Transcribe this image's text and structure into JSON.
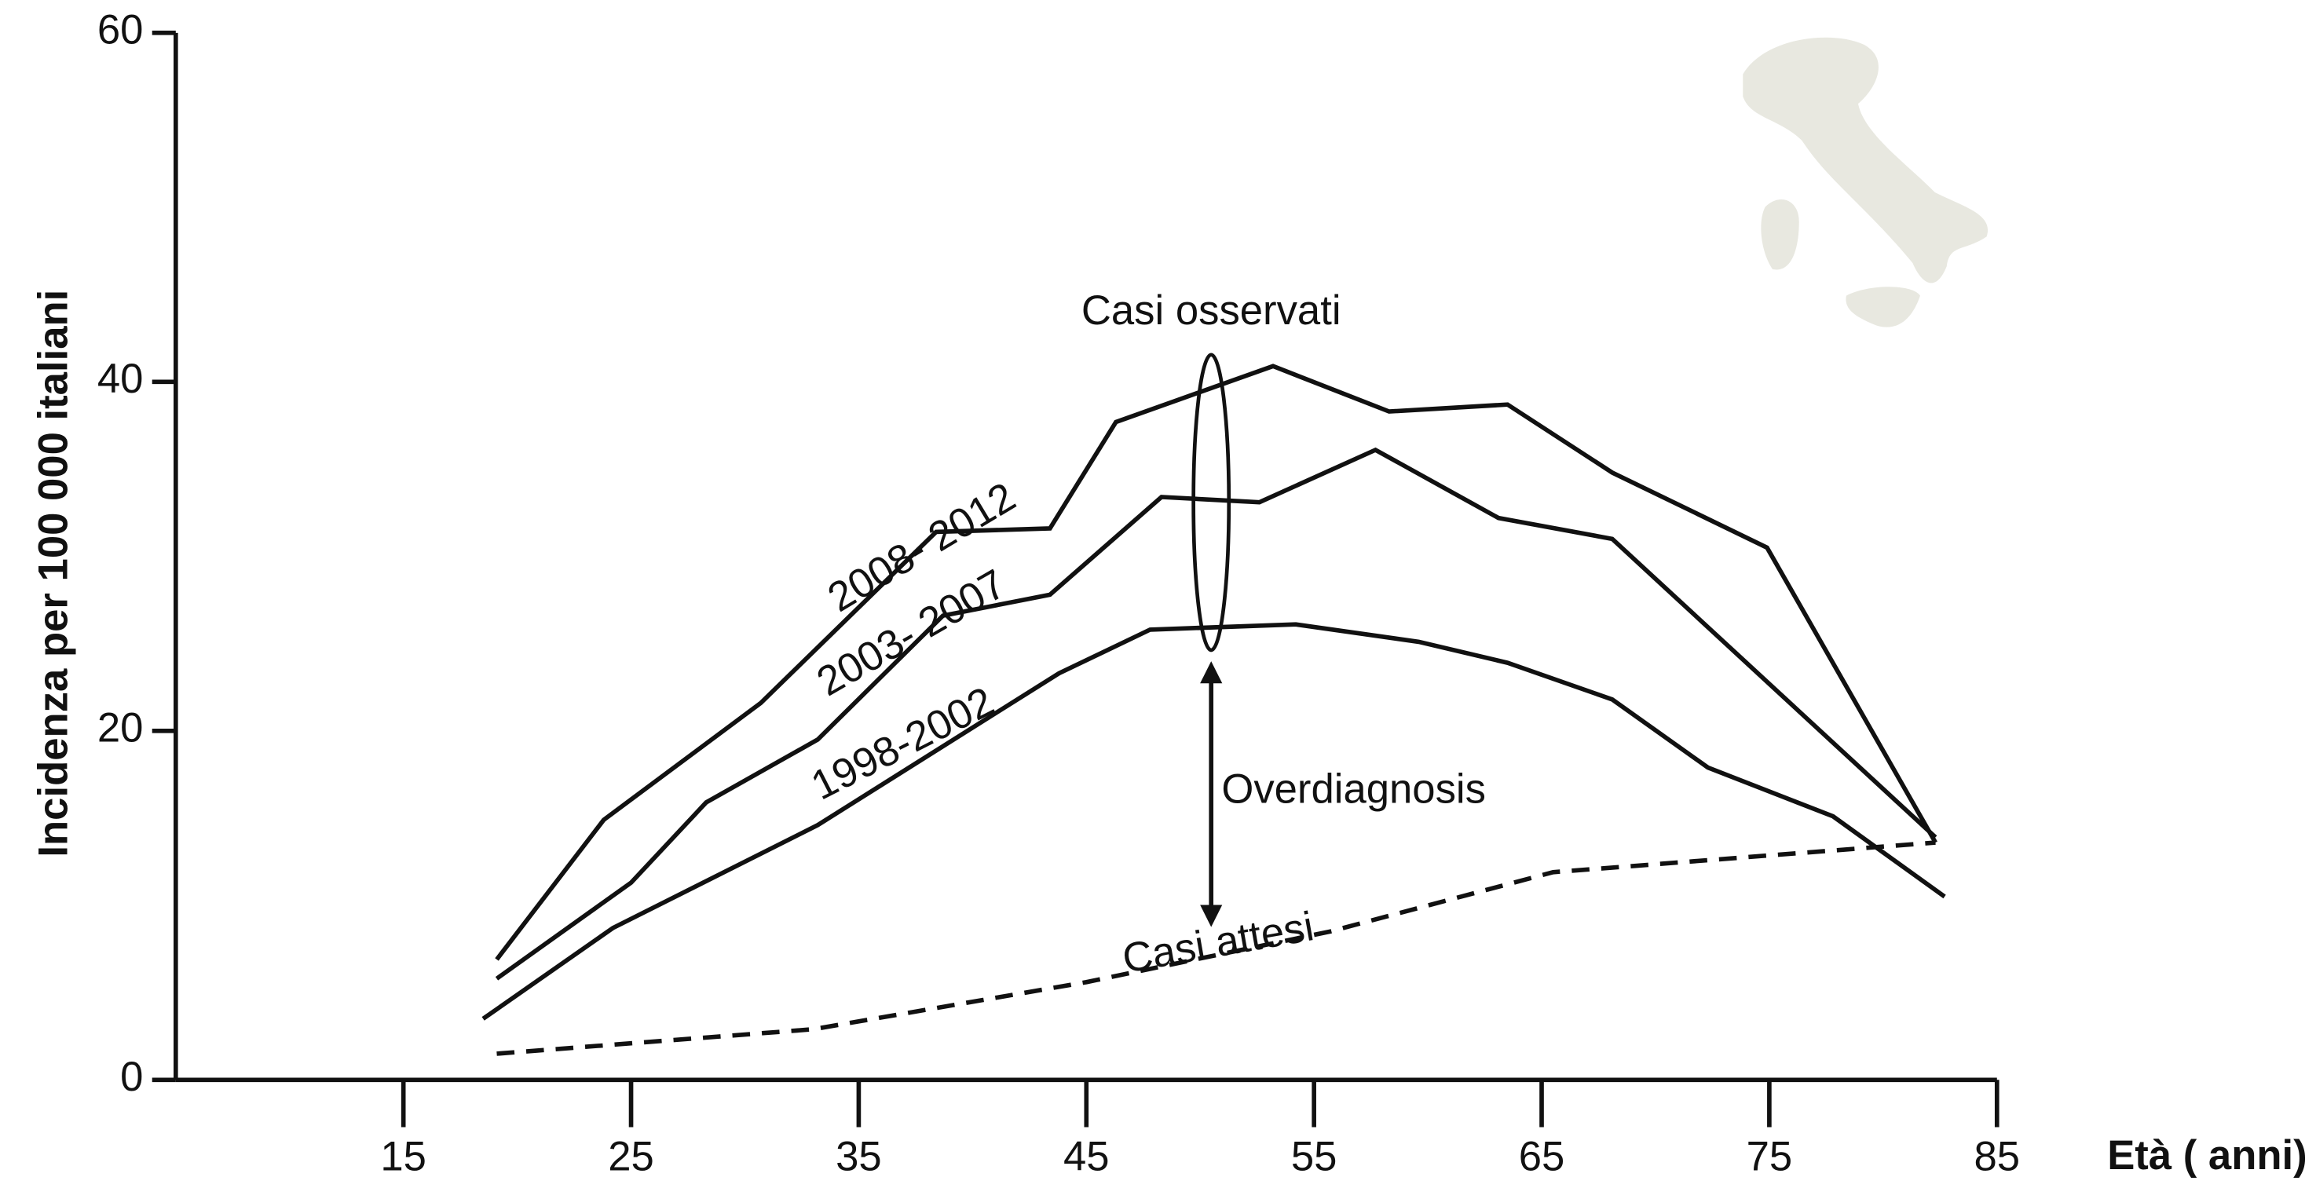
{
  "chart_data": {
    "type": "line",
    "ylabel": "Incidenza per 100 000 italiani",
    "xlabel": "Età ( anni)",
    "xlim": [
      5,
      85
    ],
    "xticks": [
      15,
      25,
      35,
      45,
      55,
      65,
      75,
      85
    ],
    "ylim": [
      0,
      60
    ],
    "yticks": [
      0,
      20,
      40,
      60
    ],
    "grid": false,
    "annotations": [
      "Casi osservati",
      "Overdiagnosis"
    ],
    "series": [
      {
        "name": "2008- 2012",
        "color": "#111111",
        "dashed": false,
        "x": [
          19.1,
          23.8,
          30.7,
          38.4,
          43.4,
          46.3,
          53.2,
          58.3,
          63.5,
          68.1,
          74.9,
          82.3
        ],
        "values": [
          6.9,
          14.9,
          21.6,
          31.4,
          31.6,
          37.7,
          40.9,
          38.3,
          38.7,
          34.8,
          30.5,
          13.6
        ]
      },
      {
        "name": "2003- 2007",
        "color": "#111111",
        "dashed": false,
        "x": [
          19.1,
          25,
          28.3,
          33.2,
          38.7,
          43.4,
          48.3,
          52.6,
          57.7,
          63.1,
          68.1,
          82.3
        ],
        "values": [
          5.8,
          11.3,
          15.9,
          19.5,
          26.6,
          27.8,
          33.4,
          33.1,
          36.1,
          32.2,
          31.0,
          13.9
        ]
      },
      {
        "name": "1998-2002",
        "color": "#111111",
        "dashed": false,
        "x": [
          18.5,
          24.2,
          33.2,
          43.8,
          47.8,
          54.2,
          59.6,
          63.5,
          68.1,
          72.3,
          77.8,
          82.7
        ],
        "values": [
          3.5,
          8.7,
          14.6,
          23.3,
          25.8,
          26.1,
          25.1,
          23.9,
          21.8,
          17.9,
          15.1,
          10.5
        ]
      },
      {
        "name": "Casi attesi",
        "color": "#111111",
        "dashed": true,
        "x": [
          19.1,
          33,
          45,
          55.7,
          65.5,
          82.3
        ],
        "values": [
          1.5,
          2.9,
          5.6,
          8.5,
          11.9,
          13.6
        ]
      }
    ]
  }
}
